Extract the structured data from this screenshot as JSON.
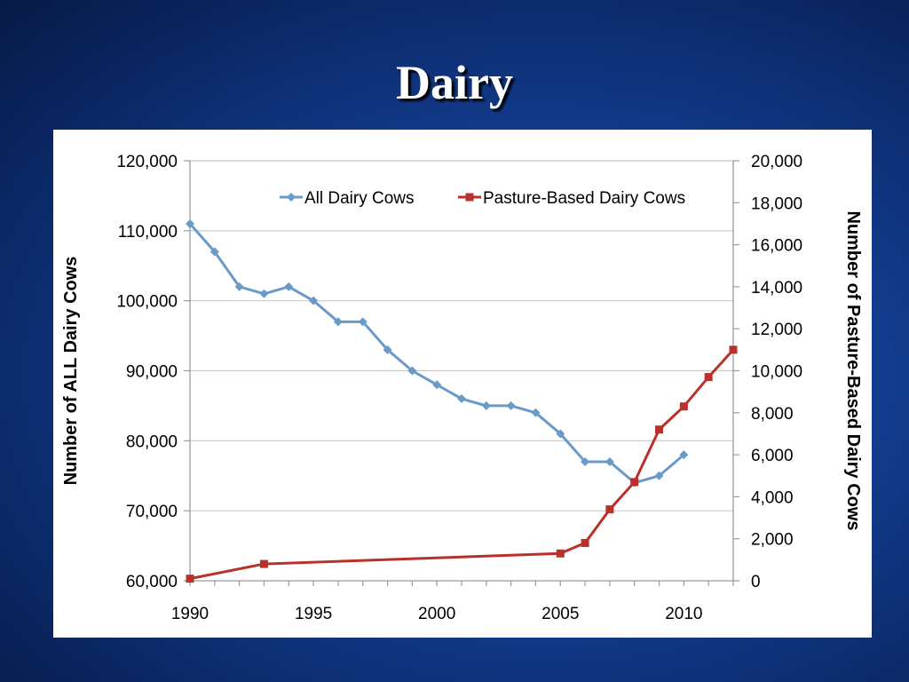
{
  "slide": {
    "title": "Dairy"
  },
  "chart_data": {
    "type": "line",
    "title": "",
    "xlabel": "",
    "ylabel_left": "Number of ALL Dairy Cows",
    "ylabel_right": "Number of Pasture-Based Dairy Cows",
    "xlim": [
      1990,
      2012
    ],
    "x_ticks": [
      1990,
      1995,
      2000,
      2005,
      2010
    ],
    "ylim_left": [
      60000,
      120000
    ],
    "y_ticks_left": [
      60000,
      70000,
      80000,
      90000,
      100000,
      110000,
      120000
    ],
    "ylim_right": [
      0,
      20000
    ],
    "y_ticks_right": [
      0,
      2000,
      4000,
      6000,
      8000,
      10000,
      12000,
      14000,
      16000,
      18000,
      20000
    ],
    "grid": true,
    "legend_position": "top",
    "series": [
      {
        "name": "All Dairy Cows",
        "axis": "left",
        "color": "#6a9ac8",
        "marker": "diamond",
        "x": [
          1990,
          1991,
          1992,
          1993,
          1994,
          1995,
          1996,
          1997,
          1998,
          1999,
          2000,
          2001,
          2002,
          2003,
          2004,
          2005,
          2006,
          2007,
          2008,
          2009,
          2010
        ],
        "values": [
          111000,
          107000,
          102000,
          101000,
          102000,
          100000,
          97000,
          97000,
          93000,
          90000,
          88000,
          86000,
          85000,
          85000,
          84000,
          81000,
          77000,
          77000,
          74000,
          75000,
          78000
        ]
      },
      {
        "name": "Pasture-Based Dairy Cows",
        "axis": "right",
        "color": "#b8312a",
        "marker": "square",
        "x": [
          1990,
          1993,
          2005,
          2006,
          2007,
          2008,
          2009,
          2010,
          2011,
          2012
        ],
        "values": [
          100,
          800,
          1300,
          1800,
          3400,
          4700,
          7200,
          8300,
          9700,
          11000
        ]
      }
    ]
  }
}
